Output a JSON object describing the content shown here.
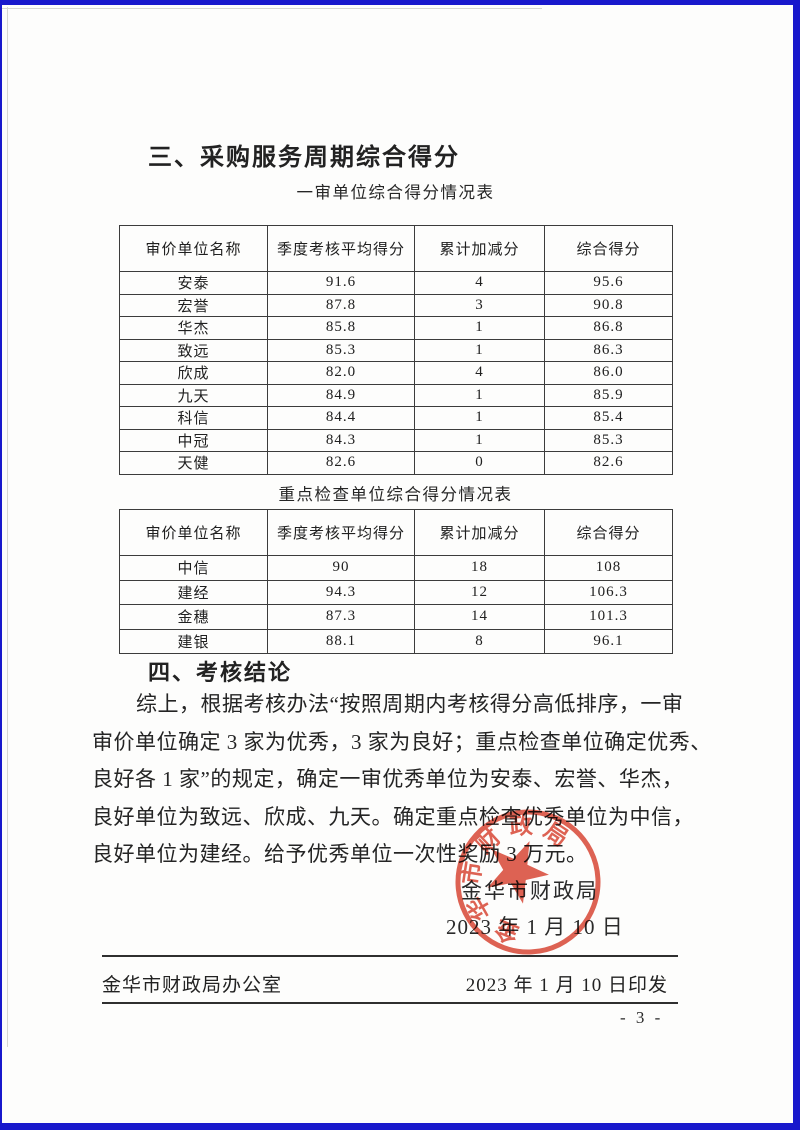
{
  "colors": {
    "frame_blue": "#1818cc",
    "stamp_red": "#d8402e",
    "rule_dark": "#2f2f2f"
  },
  "page": {
    "section3_heading": "三、采购服务周期综合得分",
    "section4_heading": "四、考核结论",
    "page_number": "- 3 -"
  },
  "table1": {
    "title": "一审单位综合得分情况表",
    "headers": [
      "审价单位名称",
      "季度考核平均得分",
      "累计加减分",
      "综合得分"
    ],
    "rows": [
      [
        "安泰",
        "91.6",
        "4",
        "95.6"
      ],
      [
        "宏誉",
        "87.8",
        "3",
        "90.8"
      ],
      [
        "华杰",
        "85.8",
        "1",
        "86.8"
      ],
      [
        "致远",
        "85.3",
        "1",
        "86.3"
      ],
      [
        "欣成",
        "82.0",
        "4",
        "86.0"
      ],
      [
        "九天",
        "84.9",
        "1",
        "85.9"
      ],
      [
        "科信",
        "84.4",
        "1",
        "85.4"
      ],
      [
        "中冠",
        "84.3",
        "1",
        "85.3"
      ],
      [
        "天健",
        "82.6",
        "0",
        "82.6"
      ]
    ]
  },
  "table2": {
    "title": "重点检查单位综合得分情况表",
    "headers": [
      "审价单位名称",
      "季度考核平均得分",
      "累计加减分",
      "综合得分"
    ],
    "rows": [
      [
        "中信",
        "90",
        "18",
        "108"
      ],
      [
        "建经",
        "94.3",
        "12",
        "106.3"
      ],
      [
        "金穗",
        "87.3",
        "14",
        "101.3"
      ],
      [
        "建银",
        "88.1",
        "8",
        "96.1"
      ]
    ]
  },
  "conclusion_lines": [
    "综上，根据考核办法“按照周期内考核得分高低排序，一审",
    "审价单位确定 3 家为优秀，3 家为良好；重点检查单位确定优秀、",
    "良好各 1 家”的规定，确定一审优秀单位为安泰、宏誉、华杰，",
    "良好单位为致远、欣成、九天。确定重点检查优秀单位为中信，",
    "良好单位为建经。给予优秀单位一次性奖励 3 万元。"
  ],
  "signature": {
    "org": "金华市财政局",
    "date": "2023 年 1 月 10 日"
  },
  "stamp": {
    "seal_text": "金华市财政局"
  },
  "footer": {
    "issuer": "金华市财政局办公室",
    "print_date": "2023 年 1 月 10 日印发"
  }
}
